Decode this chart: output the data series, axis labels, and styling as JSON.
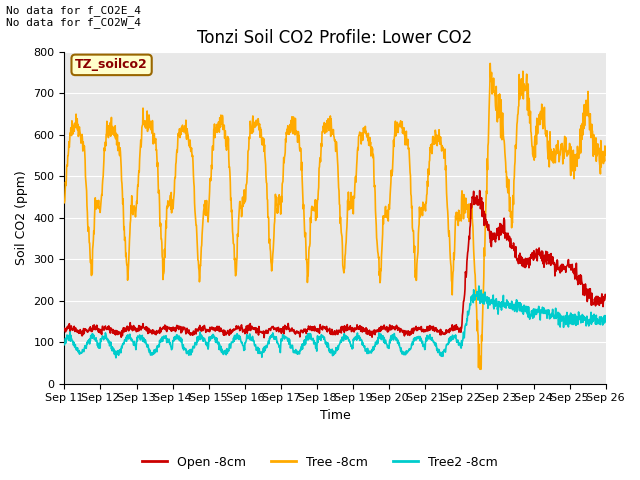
{
  "title": "Tonzi Soil CO2 Profile: Lower CO2",
  "xlabel": "Time",
  "ylabel": "Soil CO2 (ppm)",
  "ylim": [
    0,
    800
  ],
  "yticks": [
    0,
    100,
    200,
    300,
    400,
    500,
    600,
    700,
    800
  ],
  "annotation_top": "No data for f_CO2E_4\nNo data for f_CO2W_4",
  "legend_box_label": "TZ_soilco2",
  "legend_entries": [
    "Open -8cm",
    "Tree -8cm",
    "Tree2 -8cm"
  ],
  "colors": {
    "open": "#cc0000",
    "tree": "#ffaa00",
    "tree2": "#00cccc",
    "background": "#e8e8e8",
    "legend_box_bg": "#ffffcc",
    "legend_box_border": "#996600"
  },
  "xtick_labels": [
    "Sep 11",
    "Sep 12",
    "Sep 13",
    "Sep 14",
    "Sep 15",
    "Sep 16",
    "Sep 17",
    "Sep 18",
    "Sep 19",
    "Sep 20",
    "Sep 21",
    "Sep 22",
    "Sep 23",
    "Sep 24",
    "Sep 25",
    "Sep 26"
  ],
  "line_width": 1.2,
  "title_fontsize": 12,
  "axis_label_fontsize": 9,
  "tick_fontsize": 8
}
